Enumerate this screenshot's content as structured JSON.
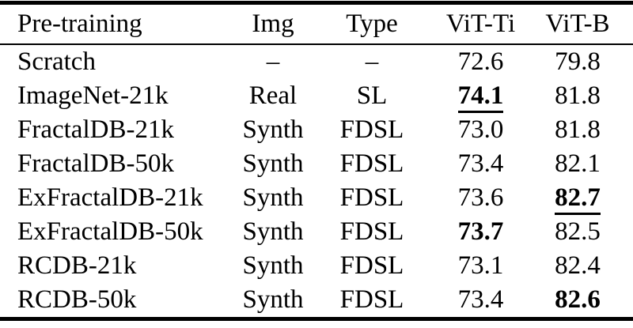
{
  "table": {
    "columns": [
      "Pre-training",
      "Img",
      "Type",
      "ViT-Ti",
      "ViT-B"
    ],
    "rows": [
      {
        "cells": [
          "Scratch",
          "–",
          "–",
          "72.6",
          "79.8"
        ],
        "styles": [
          "plain",
          "plain",
          "plain",
          "plain",
          "plain"
        ]
      },
      {
        "cells": [
          "ImageNet-21k",
          "Real",
          "SL",
          "74.1",
          "81.8"
        ],
        "styles": [
          "plain",
          "plain",
          "plain",
          "bold-underline",
          "plain"
        ]
      },
      {
        "cells": [
          "FractalDB-21k",
          "Synth",
          "FDSL",
          "73.0",
          "81.8"
        ],
        "styles": [
          "plain",
          "plain",
          "plain",
          "plain",
          "plain"
        ]
      },
      {
        "cells": [
          "FractalDB-50k",
          "Synth",
          "FDSL",
          "73.4",
          "82.1"
        ],
        "styles": [
          "plain",
          "plain",
          "plain",
          "plain",
          "plain"
        ]
      },
      {
        "cells": [
          "ExFractalDB-21k",
          "Synth",
          "FDSL",
          "73.6",
          "82.7"
        ],
        "styles": [
          "plain",
          "plain",
          "plain",
          "plain",
          "bold-underline"
        ]
      },
      {
        "cells": [
          "ExFractalDB-50k",
          "Synth",
          "FDSL",
          "73.7",
          "82.5"
        ],
        "styles": [
          "plain",
          "plain",
          "plain",
          "bold",
          "plain"
        ]
      },
      {
        "cells": [
          "RCDB-21k",
          "Synth",
          "FDSL",
          "73.1",
          "82.4"
        ],
        "styles": [
          "plain",
          "plain",
          "plain",
          "plain",
          "plain"
        ]
      },
      {
        "cells": [
          "RCDB-50k",
          "Synth",
          "FDSL",
          "73.4",
          "82.6"
        ],
        "styles": [
          "plain",
          "plain",
          "plain",
          "plain",
          "bold"
        ]
      }
    ],
    "colors": {
      "text": "#000000",
      "background": "#ffffff",
      "rule": "#000000"
    }
  }
}
